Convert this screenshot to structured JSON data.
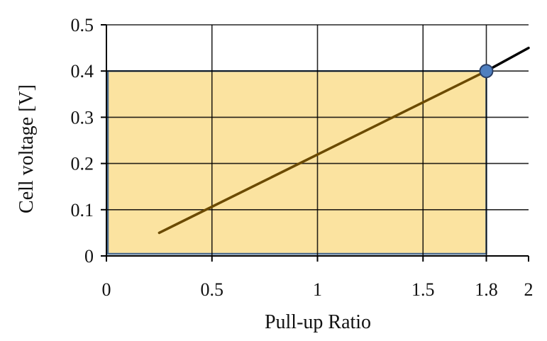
{
  "chart_data": {
    "type": "line",
    "title": "",
    "xlabel": "Pull-up Ratio",
    "ylabel": "Cell voltage [V]",
    "xlim": [
      0,
      2
    ],
    "ylim": [
      0,
      0.5
    ],
    "x_ticks": [
      0,
      0.5,
      1,
      1.5,
      1.8,
      2
    ],
    "x_tick_labels": [
      "0",
      "0.5",
      "1",
      "1.5",
      "1.8",
      "2"
    ],
    "y_ticks": [
      0,
      0.1,
      0.2,
      0.3,
      0.4,
      0.5
    ],
    "y_tick_labels": [
      "0",
      "0.1",
      "0.2",
      "0.3",
      "0.4",
      "0.5"
    ],
    "grid": true,
    "series": [
      {
        "x": [
          0.25,
          1.8
        ],
        "y": [
          0.05,
          0.4
        ],
        "color": "#6b4a00"
      },
      {
        "x": [
          1.8,
          2.0
        ],
        "y": [
          0.4,
          0.45
        ],
        "color": "#000000"
      }
    ],
    "highlight_region": {
      "x": [
        0,
        1.8
      ],
      "y": [
        0,
        0.4
      ],
      "fill": "#fbe3a0",
      "stroke": "#4a6b8f"
    },
    "marker": {
      "x": 1.8,
      "y": 0.4,
      "fill": "#4f7fbf",
      "stroke": "#2a3f66"
    }
  }
}
